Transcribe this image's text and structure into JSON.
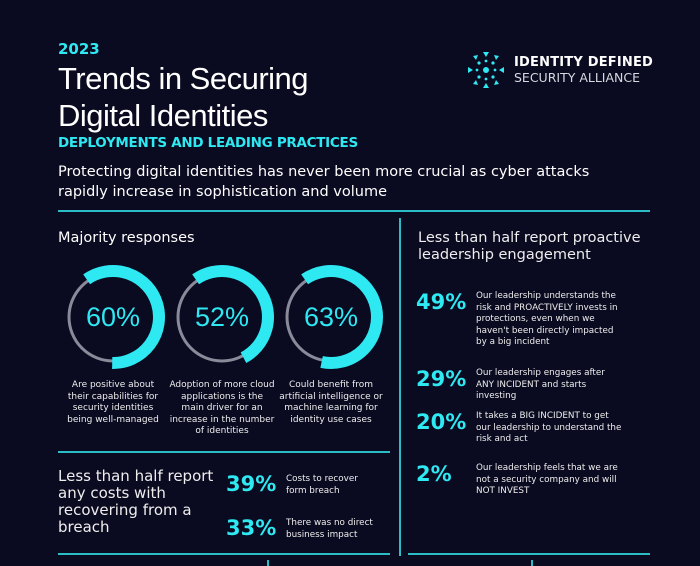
{
  "header": {
    "year": "2023",
    "title_line1": "Trends in Securing",
    "title_line2": "Digital Identities",
    "subtitle": "DEPLOYMENTS AND LEADING PRACTICES",
    "intro": "Protecting digital identities has never been more crucial as cyber attacks rapidly increase in sophistication and volume"
  },
  "logo": {
    "line1": "IDENTITY DEFINED",
    "line2": "SECURITY ALLIANCE"
  },
  "majority": {
    "heading": "Majority responses",
    "rings": [
      {
        "label": "60%",
        "value": 60,
        "desc": "Are positive about their capabilities for security identities being well-managed"
      },
      {
        "label": "52%",
        "value": 52,
        "desc": "Adoption of more cloud applications is the main driver for an increase in the number of identities"
      },
      {
        "label": "63%",
        "value": 63,
        "desc": "Could benefit from artificial intelligence or machine learning for identity use cases"
      }
    ]
  },
  "costs": {
    "heading": "Less than half report any costs with recovering from a breach",
    "stats": [
      {
        "pct": "39%",
        "desc": "Costs to recover form breach"
      },
      {
        "pct": "33%",
        "desc": "There was no direct business impact"
      }
    ]
  },
  "leadership": {
    "heading": "Less than half report proactive leadership engagement",
    "stats": [
      {
        "pct": "49%",
        "desc": "Our leadership understands the risk and PROACTIVELY invests in protections, even when we haven't been directly impacted by a big incident"
      },
      {
        "pct": "29%",
        "desc": "Our leadership engages after ANY INCIDENT and starts investing"
      },
      {
        "pct": "20%",
        "desc": "It takes a BIG INCIDENT to get our leadership to understand the risk and act"
      },
      {
        "pct": "2%",
        "desc": "Our leadership feels that we are not a security company and will NOT INVEST"
      }
    ]
  },
  "colors": {
    "accent": "#2ee8f2",
    "background": "#0a0a20",
    "ring_track": "#8a8a9a"
  }
}
